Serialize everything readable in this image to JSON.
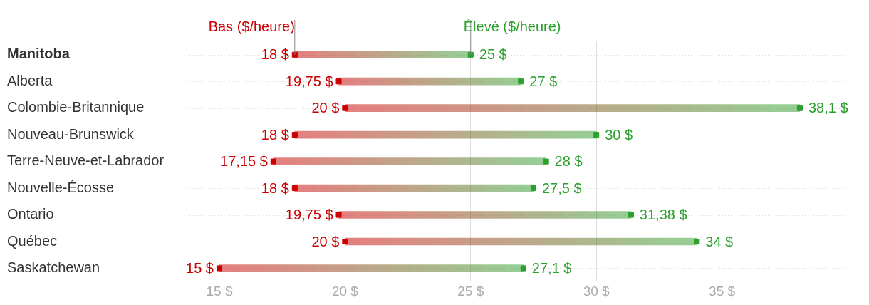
{
  "chart_data": {
    "type": "bar",
    "orientation": "horizontal",
    "grid": true,
    "marker": "square",
    "categories": [
      "Manitoba",
      "Alberta",
      "Colombie-Britannique",
      "Nouveau-Brunswick",
      "Terre-Neuve-et-Labrador",
      "Nouvelle-Écosse",
      "Ontario",
      "Québec",
      "Saskatchewan"
    ],
    "xlim": [
      13.7,
      40
    ],
    "xticks": [
      {
        "value": 15,
        "label": "15 $"
      },
      {
        "value": 20,
        "label": "20 $"
      },
      {
        "value": 25,
        "label": "25 $"
      },
      {
        "value": 30,
        "label": "30 $"
      },
      {
        "value": 35,
        "label": "35 $"
      }
    ],
    "series": [
      {
        "base": [
          18,
          19.75,
          20,
          18,
          17.15,
          18,
          19.75,
          20,
          15
        ],
        "values": [
          7,
          7.25,
          18.1,
          12,
          10.85,
          9.5,
          11.63,
          14,
          12.1
        ]
      },
      {
        "type": "scatter",
        "name": "Bas ($/heure)",
        "color": "#cc0000",
        "values": [
          18,
          19.75,
          20,
          18,
          17.15,
          18,
          19.75,
          20,
          15
        ],
        "value_labels": [
          "18 $",
          "19,75 $",
          "20 $",
          "18 $",
          "17,15 $",
          "18 $",
          "19,75 $",
          "20 $",
          "15 $"
        ]
      },
      {
        "type": "scatter",
        "name": "Élevé ($/heure)",
        "color": "#2ca02c",
        "values": [
          25,
          27,
          38.1,
          30,
          28,
          27.5,
          31.38,
          34,
          27.1
        ],
        "value_labels": [
          "25 $",
          "27 $",
          "38,1 $",
          "30 $",
          "28 $",
          "27,5 $",
          "31,38 $",
          "34 $",
          "27,1 $"
        ]
      }
    ]
  }
}
